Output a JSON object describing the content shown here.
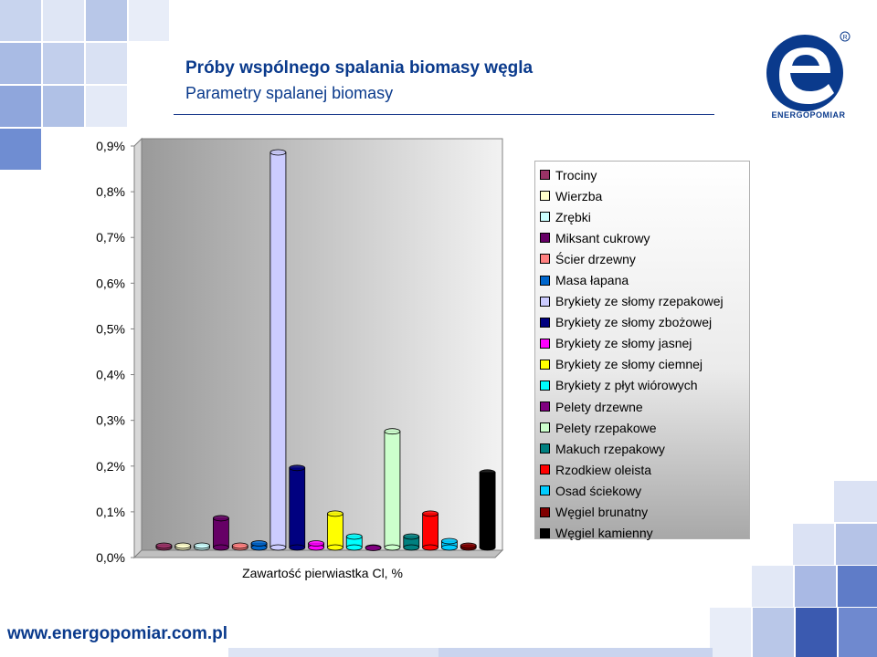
{
  "header": {
    "title": "Próby wspólnego spalania biomasy węgla",
    "subtitle": "Parametry spalanej biomasy"
  },
  "logo": {
    "name": "ENERGOPOMIAR"
  },
  "footer": {
    "url": "www.energopomiar.com.pl"
  },
  "chart_data": {
    "type": "bar",
    "xlabel": "Zawartość pierwiastka Cl, %",
    "ylabel": "",
    "ylim": [
      0,
      0.009
    ],
    "yticks": [
      {
        "value": 0.0,
        "label": "0,0%"
      },
      {
        "value": 0.001,
        "label": "0,1%"
      },
      {
        "value": 0.002,
        "label": "0,2%"
      },
      {
        "value": 0.003,
        "label": "0,3%"
      },
      {
        "value": 0.004,
        "label": "0,4%"
      },
      {
        "value": 0.005,
        "label": "0,5%"
      },
      {
        "value": 0.006,
        "label": "0,6%"
      },
      {
        "value": 0.007,
        "label": "0,7%"
      },
      {
        "value": 0.008,
        "label": "0,8%"
      },
      {
        "value": 0.009,
        "label": "0,9%"
      }
    ],
    "legend_position": "right",
    "series": [
      {
        "name": "Trociny",
        "value": 0.0001,
        "color": "#993366"
      },
      {
        "name": "Wierzba",
        "value": 0.0001,
        "color": "#ffffcc"
      },
      {
        "name": "Zrębki",
        "value": 0.0001,
        "color": "#ccffff"
      },
      {
        "name": "Miksant cukrowy",
        "value": 0.0007,
        "color": "#660066"
      },
      {
        "name": "Ścier drzewny",
        "value": 0.0001,
        "color": "#ff8080"
      },
      {
        "name": "Masa łapana",
        "value": 0.00015,
        "color": "#0066cc"
      },
      {
        "name": "Brykiety ze słomy rzepakowej",
        "value": 0.0087,
        "color": "#ccccff"
      },
      {
        "name": "Brykiety ze słomy zbożowej",
        "value": 0.0018,
        "color": "#000080"
      },
      {
        "name": "Brykiety ze słomy jasnej",
        "value": 0.00015,
        "color": "#ff00ff"
      },
      {
        "name": "Brykiety ze słomy ciemnej",
        "value": 0.0008,
        "color": "#ffff00"
      },
      {
        "name": "Brykiety z płyt wiórowych",
        "value": 0.0003,
        "color": "#00ffff"
      },
      {
        "name": "Pelety drzewne",
        "value": 5e-05,
        "color": "#800080"
      },
      {
        "name": "Pelety rzepakowe",
        "value": 0.0026,
        "color": "#ccffcc"
      },
      {
        "name": "Makuch rzepakowy",
        "value": 0.0003,
        "color": "#008080"
      },
      {
        "name": "Rzodkiew oleista",
        "value": 0.0008,
        "color": "#ff0000"
      },
      {
        "name": "Osad ściekowy",
        "value": 0.0002,
        "color": "#00ccff"
      },
      {
        "name": "Węgiel brunatny",
        "value": 0.0001,
        "color": "#800000"
      },
      {
        "name": "Węgiel kamienny",
        "value": 0.0017,
        "color": "#000000"
      }
    ]
  }
}
